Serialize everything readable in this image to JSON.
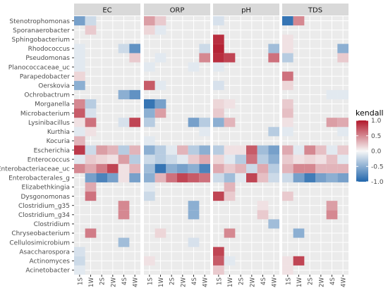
{
  "chart_data": {
    "type": "heatmap",
    "title": "",
    "facets": [
      "EC",
      "ORP",
      "pH",
      "TDS"
    ],
    "x_categories": [
      "1S",
      "1W",
      "2S",
      "2W",
      "4S",
      "4W"
    ],
    "y_categories": [
      "Acinetobacter",
      "Actinomyces",
      "Asaccharospora",
      "Cellulosimicrobium",
      "Chryseobacterium",
      "Clostridium",
      "Clostridium_g34",
      "Clostridium_g35",
      "Dysgonomonas",
      "Elizabethkingia",
      "Enterobacterales_g",
      "Enterobacteriaceae_uc",
      "Enterococcus",
      "Escherichia",
      "Kocuria",
      "Kurthia",
      "Lysinibacillus",
      "Microbacterium",
      "Morganella",
      "Ochrobactrum",
      "Oerskovia",
      "Parapedobacter",
      "Planococcaceae_uc",
      "Pseudomonas",
      "Rhodococcus",
      "Sphingobacterium",
      "Sporanaerobacter",
      "Stenotrophomonas"
    ],
    "legend": {
      "title": "kendall",
      "ticks": [
        "1.0",
        "0.5",
        "0.0",
        "-0.5",
        "-1.0"
      ],
      "range": [
        -1,
        1
      ],
      "low_color": "#2166ac",
      "mid_color": "#f7f7f7",
      "high_color": "#b2182b",
      "missing_color": "#ffffff",
      "placement": "right"
    },
    "values": {
      "EC": {
        "Stenotrophomonas": [
          -0.6,
          -0.2,
          0,
          0,
          0,
          0
        ],
        "Sporanaerobacter": [
          0,
          0.2,
          0,
          0,
          0,
          0
        ],
        "Sphingobacterium": [
          0,
          0,
          0,
          0,
          0,
          0
        ],
        "Rhodococcus": [
          -0.1,
          0,
          0,
          0,
          -0.2,
          -0.7
        ],
        "Pseudomonas": [
          -0.1,
          0,
          0,
          0,
          0,
          0.2
        ],
        "Planococcaceae_uc": [
          -0.1,
          0,
          0,
          0,
          0,
          0
        ],
        "Parapedobacter": [
          0.15,
          0,
          0,
          0,
          0,
          0
        ],
        "Oerskovia": [
          -0.5,
          0,
          0,
          0,
          0,
          0
        ],
        "Ochrobactrum": [
          0,
          0,
          0,
          0,
          -0.5,
          -0.7
        ],
        "Morganella": [
          0.5,
          -0.3,
          0,
          0,
          0,
          0
        ],
        "Microbacterium": [
          0.7,
          -0.15,
          0,
          0,
          0,
          0
        ],
        "Lysinibacillus": [
          0.1,
          0.6,
          0,
          0,
          -0.15,
          0.8
        ],
        "Kurthia": [
          -0.1,
          0.1,
          0,
          0,
          0,
          0
        ],
        "Kocuria": [
          0.3,
          0,
          0,
          0,
          0,
          0
        ],
        "Escherichia": [
          0.85,
          -0.2,
          0.4,
          0.3,
          -0.3,
          0.3
        ],
        "Enterococcus": [
          -0.1,
          0.2,
          0.15,
          0.1,
          0.4,
          -0.3
        ],
        "Enterobacteriaceae_uc": [
          0.5,
          0.35,
          0.55,
          0.8,
          0.1,
          0.3
        ],
        "Enterobacterales_g": [
          0,
          -0.6,
          -0.8,
          -0.6,
          0.1,
          -0.6
        ],
        "Elizabethkingia": [
          0,
          0.35,
          0,
          0,
          0,
          0
        ],
        "Dysgonomonas": [
          0,
          0.6,
          0,
          0,
          0,
          0
        ],
        "Clostridium_g35": [
          0,
          0,
          0,
          0,
          0.5,
          0
        ],
        "Clostridium_g34": [
          0,
          0,
          0,
          0,
          0.5,
          0
        ],
        "Clostridium": [
          0,
          0,
          0,
          0,
          0,
          0
        ],
        "Chryseobacterium": [
          0,
          0.55,
          0,
          0,
          0,
          0
        ],
        "Cellulosimicrobium": [
          0,
          0,
          0,
          0,
          -0.4,
          0
        ],
        "Asaccharospora": [
          -0.15,
          0,
          0,
          0,
          0,
          0
        ],
        "Actinomyces": [
          -0.2,
          0,
          0,
          0,
          0,
          0
        ],
        "Acinetobacter": [
          -0.1,
          0,
          0,
          0,
          0,
          0
        ]
      },
      "ORP": {
        "Stenotrophomonas": [
          0.4,
          0.2,
          0,
          0,
          0,
          0
        ],
        "Sporanaerobacter": [
          0.15,
          -0.1,
          0,
          0,
          0,
          0
        ],
        "Sphingobacterium": [
          0,
          0,
          0,
          0,
          0,
          0
        ],
        "Rhodococcus": [
          0,
          0,
          0,
          0,
          0,
          -0.2
        ],
        "Pseudomonas": [
          0,
          -0.1,
          0,
          0,
          0,
          0.5
        ],
        "Planococcaceae_uc": [
          -0.1,
          0,
          0,
          0,
          -0.1,
          0
        ],
        "Parapedobacter": [
          0,
          0,
          0,
          0,
          0,
          0
        ],
        "Oerskovia": [
          0.7,
          -0.1,
          0,
          0,
          0,
          0
        ],
        "Ochrobactrum": [
          0,
          0,
          0,
          0,
          0,
          0
        ],
        "Morganella": [
          -0.9,
          -0.6,
          0,
          0,
          0,
          0
        ],
        "Microbacterium": [
          -0.5,
          0.4,
          0,
          0,
          0,
          0
        ],
        "Lysinibacillus": [
          -0.3,
          0,
          0,
          0,
          -0.6,
          -0.3
        ],
        "Kurthia": [
          0,
          0,
          0,
          0,
          0,
          -0.1
        ],
        "Kocuria": [
          -0.1,
          0,
          0,
          0,
          0,
          0
        ],
        "Escherichia": [
          -0.5,
          -0.3,
          -0.1,
          0.3,
          -0.3,
          -0.5
        ],
        "Enterococcus": [
          -0.2,
          -0.3,
          -0.2,
          -0.1,
          0.2,
          0.35
        ],
        "Enterobacteriaceae_uc": [
          -0.4,
          -0.9,
          -0.5,
          -0.6,
          -0.5,
          -0.8
        ],
        "Enterobacterales_g": [
          -0.5,
          0.3,
          0.6,
          0.8,
          0.7,
          0.6
        ],
        "Elizabethkingia": [
          -0.1,
          0,
          0,
          0,
          0,
          0
        ],
        "Dysgonomonas": [
          -0.2,
          0,
          0,
          0,
          0,
          0
        ],
        "Clostridium_g35": [
          0,
          0,
          0,
          0,
          -0.5,
          0
        ],
        "Clostridium_g34": [
          0,
          0,
          0,
          0,
          -0.5,
          0
        ],
        "Clostridium": [
          0,
          0,
          0,
          0,
          0,
          0
        ],
        "Chryseobacterium": [
          0,
          0.15,
          0,
          0,
          0,
          0
        ],
        "Cellulosimicrobium": [
          0,
          0,
          0,
          0,
          -0.15,
          0
        ],
        "Asaccharospora": [
          0,
          0,
          0,
          0,
          0,
          0
        ],
        "Actinomyces": [
          0.1,
          0,
          0,
          0,
          0,
          0
        ],
        "Acinetobacter": [
          0,
          0,
          0,
          0,
          0,
          0
        ]
      },
      "pH": {
        "Stenotrophomonas": [
          -0.15,
          0,
          0,
          0,
          0,
          0
        ],
        "Sporanaerobacter": [
          0,
          0,
          0,
          0,
          0,
          0
        ],
        "Sphingobacterium": [
          0.9,
          0,
          0,
          0,
          0,
          0
        ],
        "Rhodococcus": [
          0.95,
          0,
          0,
          0,
          0,
          -0.4
        ],
        "Pseudomonas": [
          0.9,
          0.8,
          0,
          0,
          0,
          0.6
        ],
        "Planococcaceae_uc": [
          -0.1,
          0,
          0,
          0,
          0,
          0
        ],
        "Parapedobacter": [
          0,
          0,
          0,
          0,
          0,
          0
        ],
        "Oerskovia": [
          -0.15,
          0,
          0,
          0,
          0,
          0
        ],
        "Ochrobactrum": [
          0,
          0,
          0,
          0,
          0,
          0
        ],
        "Morganella": [
          0.15,
          0.1,
          0,
          0,
          0,
          0
        ],
        "Microbacterium": [
          0.2,
          0,
          0,
          0,
          0,
          0
        ],
        "Lysinibacillus": [
          -0.5,
          0.3,
          0,
          0,
          0,
          0
        ],
        "Kurthia": [
          0,
          0,
          0,
          0,
          0,
          -0.3
        ],
        "Kocuria": [
          0,
          0,
          0,
          0,
          0,
          0
        ],
        "Escherichia": [
          -0.3,
          0.1,
          0.1,
          0.7,
          -0.4,
          -0.6
        ],
        "Enterococcus": [
          0.15,
          -0.1,
          -0.3,
          0.6,
          -0.3,
          -0.5
        ],
        "Enterobacteriaceae_uc": [
          0.35,
          0.2,
          0.3,
          -0.2,
          0.35,
          -0.3
        ],
        "Enterobacterales_g": [
          -0.2,
          -0.4,
          -0.1,
          0.8,
          0.25,
          -0.2
        ],
        "Elizabethkingia": [
          0,
          0.3,
          0,
          0,
          0,
          0
        ],
        "Dysgonomonas": [
          0.8,
          0.2,
          0,
          0,
          0,
          0
        ],
        "Clostridium_g35": [
          0,
          0,
          0,
          0,
          0.1,
          0
        ],
        "Clostridium_g34": [
          0,
          0,
          0,
          0,
          0.2,
          0
        ],
        "Clostridium": [
          0,
          0,
          0,
          0,
          0,
          -0.4
        ],
        "Chryseobacterium": [
          0,
          0.5,
          0,
          0,
          0,
          0
        ],
        "Cellulosimicrobium": [
          0,
          0,
          0,
          0,
          0,
          0
        ],
        "Asaccharospora": [
          0.8,
          0,
          0,
          0,
          0,
          0
        ],
        "Actinomyces": [
          0.7,
          -0.1,
          0,
          0,
          0,
          0
        ],
        "Acinetobacter": [
          0.2,
          0,
          0,
          0,
          0,
          0
        ]
      },
      "TDS": {
        "Stenotrophomonas": [
          -0.9,
          0.5,
          0,
          0,
          0,
          0
        ],
        "Sporanaerobacter": [
          0,
          0,
          0,
          0,
          0,
          0
        ],
        "Sphingobacterium": [
          0.1,
          0,
          0,
          0,
          0,
          0
        ],
        "Rhodococcus": [
          0.1,
          0,
          0,
          0,
          0,
          -0.5
        ],
        "Pseudomonas": [
          -0.3,
          0,
          0,
          0,
          0,
          0.2
        ],
        "Planococcaceae_uc": [
          0,
          0,
          0,
          0,
          0,
          0
        ],
        "Parapedobacter": [
          0.6,
          0,
          0,
          0,
          0,
          0
        ],
        "Oerskovia": [
          0.15,
          0,
          0,
          0,
          0,
          0
        ],
        "Ochrobactrum": [
          0,
          0,
          0,
          0,
          -0.1,
          -0.1
        ],
        "Morganella": [
          0.2,
          0,
          0,
          0,
          0,
          0
        ],
        "Microbacterium": [
          0.25,
          0,
          0,
          0,
          0,
          0
        ],
        "Lysinibacillus": [
          0.1,
          0,
          0,
          0,
          0.4,
          0.35
        ],
        "Kurthia": [
          -0.1,
          0,
          0,
          0,
          0,
          -0.1
        ],
        "Kocuria": [
          0,
          0,
          0,
          0,
          0,
          0
        ],
        "Escherichia": [
          0.35,
          -0.1,
          0.5,
          0.25,
          -0.1,
          0.2
        ],
        "Enterococcus": [
          0.2,
          0.1,
          0.15,
          0.1,
          0.25,
          -0.1
        ],
        "Enterobacteriaceae_uc": [
          0.3,
          0.5,
          0.5,
          0.3,
          0.3,
          0.3
        ],
        "Enterobacterales_g": [
          -0.2,
          -0.6,
          -0.85,
          -0.6,
          -0.5,
          -0.6
        ],
        "Elizabethkingia": [
          0,
          0,
          0,
          0,
          0,
          0
        ],
        "Dysgonomonas": [
          0.2,
          0,
          0,
          0,
          0,
          0
        ],
        "Clostridium_g35": [
          0,
          0,
          0,
          0,
          0.4,
          0
        ],
        "Clostridium_g34": [
          0,
          0,
          0,
          0,
          0.5,
          0
        ],
        "Clostridium": [
          0,
          0,
          0,
          0,
          0,
          0
        ],
        "Chryseobacterium": [
          0,
          -0.5,
          0,
          0,
          0,
          0
        ],
        "Cellulosimicrobium": [
          0,
          0,
          0,
          0,
          0,
          0
        ],
        "Asaccharospora": [
          0,
          0,
          0,
          0,
          0,
          0
        ],
        "Actinomyces": [
          0.1,
          0.8,
          0,
          0,
          0,
          0
        ],
        "Acinetobacter": [
          0.1,
          0,
          0,
          0,
          0,
          0
        ]
      }
    }
  }
}
